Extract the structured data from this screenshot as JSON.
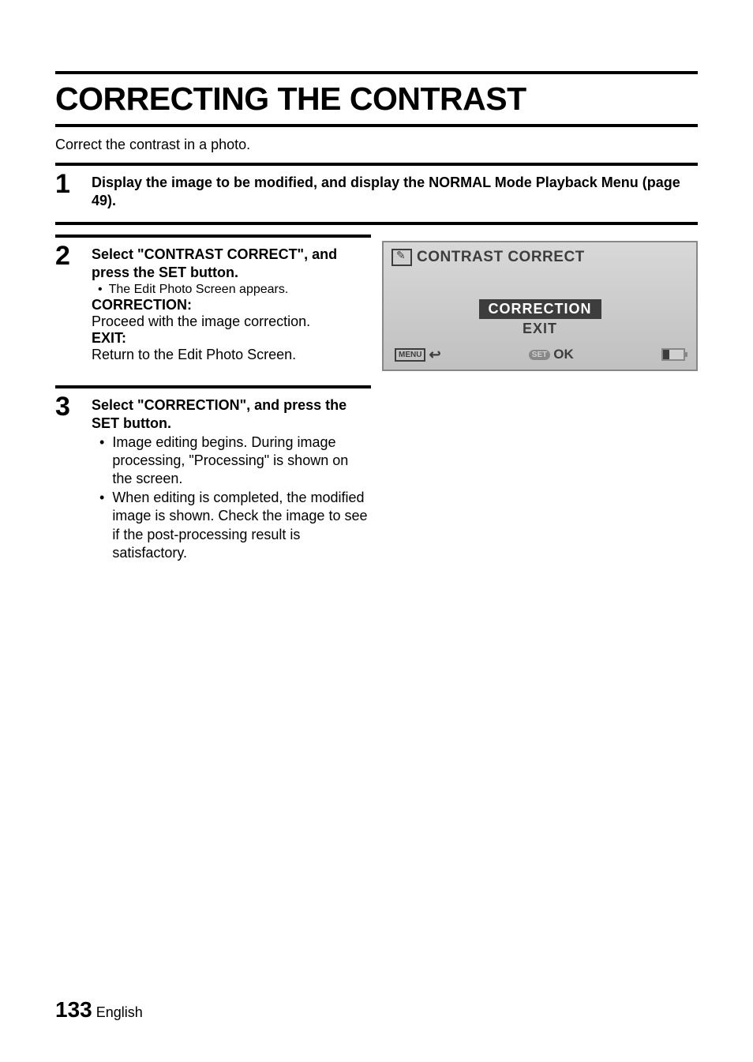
{
  "title": "CORRECTING THE CONTRAST",
  "intro": "Correct the contrast in a photo.",
  "step1": {
    "number": "1",
    "heading": "Display the image to be modified, and display the NORMAL Mode Playback Menu (page 49)."
  },
  "step2": {
    "number": "2",
    "heading": "Select \"CONTRAST CORRECT\", and press the SET button.",
    "bullet1": "The Edit Photo Screen appears.",
    "term1": "CORRECTION:",
    "def1": "Proceed with the image correction.",
    "term2": "EXIT:",
    "def2": "Return to the Edit Photo Screen."
  },
  "step3": {
    "number": "3",
    "heading": "Select \"CORRECTION\", and press the SET button.",
    "bullet1": "Image editing begins. During image processing, \"Processing\" is shown on the screen.",
    "bullet2": "When editing is completed, the modified image is shown. Check the image to see if the post-processing result is satisfactory."
  },
  "lcd": {
    "title": "CONTRAST CORRECT",
    "option_selected": "CORRECTION",
    "option_other": "EXIT",
    "menu_label": "MENU",
    "ok_label": "OK",
    "set_label": "SET"
  },
  "footer": {
    "page_number": "133",
    "language": "English"
  },
  "styling": {
    "title_fontsize": 41,
    "body_fontsize": 18,
    "step_number_fontsize": 34,
    "page_number_fontsize": 28,
    "colors": {
      "text": "#000000",
      "lcd_bg_start": "#d8d8d8",
      "lcd_bg_end": "#c0c0c0",
      "lcd_dark": "#3d3d3d",
      "lcd_border": "#888888",
      "white": "#ffffff"
    },
    "rule_thickness": 4
  }
}
